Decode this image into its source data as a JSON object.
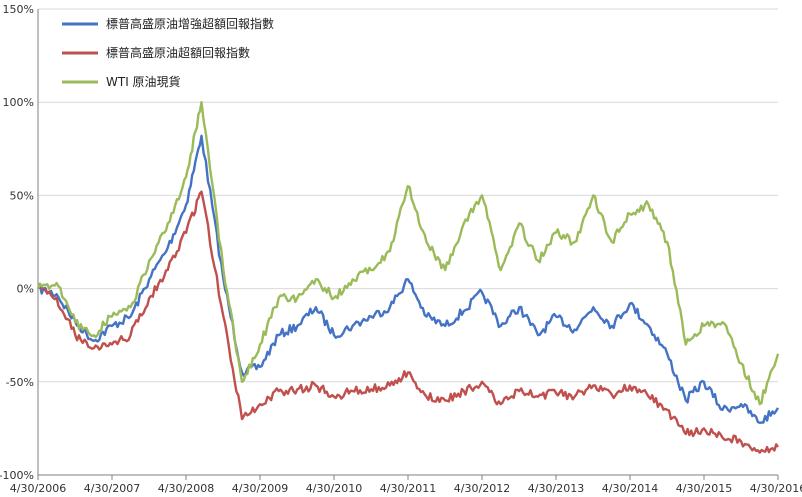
{
  "chart_data": {
    "type": "line",
    "title": "",
    "xlabel": "",
    "ylabel": "",
    "x_tick_labels": [
      "4/30/2006",
      "4/30/2007",
      "4/30/2008",
      "4/30/2009",
      "4/30/2010",
      "4/30/2011",
      "4/30/2012",
      "4/30/2013",
      "4/30/2014",
      "4/30/2015",
      "4/30/2016"
    ],
    "y_tick_labels": [
      "-100%",
      "-50%",
      "0%",
      "50%",
      "100%",
      "150%"
    ],
    "y_tick_values": [
      -100,
      -50,
      0,
      50,
      100,
      150
    ],
    "xlim": [
      "2006-04-30",
      "2016-04-30"
    ],
    "ylim": [
      -100,
      150
    ],
    "grid": "horizontal",
    "legend_position": "top-left",
    "x": [
      "2006-04-30",
      "2006-07-31",
      "2006-10-31",
      "2007-01-31",
      "2007-04-30",
      "2007-07-31",
      "2007-10-31",
      "2008-01-31",
      "2008-04-30",
      "2008-07-15",
      "2008-10-31",
      "2009-01-31",
      "2009-04-30",
      "2009-07-31",
      "2009-10-31",
      "2010-01-31",
      "2010-04-30",
      "2010-07-31",
      "2010-10-31",
      "2011-01-31",
      "2011-04-30",
      "2011-07-31",
      "2011-10-31",
      "2012-01-31",
      "2012-04-30",
      "2012-07-31",
      "2012-10-31",
      "2013-01-31",
      "2013-04-30",
      "2013-07-31",
      "2013-10-31",
      "2014-01-31",
      "2014-04-30",
      "2014-07-31",
      "2014-10-31",
      "2015-01-31",
      "2015-04-30",
      "2015-07-31",
      "2015-10-31",
      "2016-01-31",
      "2016-04-30"
    ],
    "series": [
      {
        "name": "標普高盛原油增強超額回報指數",
        "color": "#4472C4",
        "values": [
          0,
          -3,
          -18,
          -28,
          -20,
          -15,
          5,
          22,
          45,
          82,
          5,
          -45,
          -42,
          -25,
          -20,
          -10,
          -25,
          -20,
          -15,
          -10,
          5,
          -15,
          -20,
          -12,
          -2,
          -20,
          -10,
          -25,
          -15,
          -22,
          -10,
          -20,
          -8,
          -20,
          -35,
          -60,
          -50,
          -65,
          -62,
          -72,
          -64
        ]
      },
      {
        "name": "標普高盛原油超額回報指數",
        "color": "#C0504D",
        "values": [
          0,
          -5,
          -25,
          -32,
          -30,
          -25,
          -5,
          10,
          30,
          52,
          -15,
          -70,
          -62,
          -55,
          -54,
          -52,
          -58,
          -55,
          -54,
          -52,
          -45,
          -58,
          -60,
          -55,
          -50,
          -62,
          -55,
          -58,
          -56,
          -58,
          -52,
          -57,
          -52,
          -58,
          -65,
          -78,
          -75,
          -80,
          -82,
          -88,
          -85
        ]
      },
      {
        "name": "WTI 原油現貨",
        "color": "#9BBB59",
        "values": [
          0,
          3,
          -18,
          -25,
          -15,
          -10,
          15,
          35,
          60,
          100,
          10,
          -50,
          -30,
          -5,
          -5,
          5,
          -5,
          5,
          10,
          20,
          55,
          25,
          10,
          35,
          50,
          10,
          35,
          15,
          30,
          25,
          50,
          25,
          40,
          45,
          25,
          -30,
          -20,
          -18,
          -40,
          -62,
          -35
        ]
      }
    ]
  }
}
